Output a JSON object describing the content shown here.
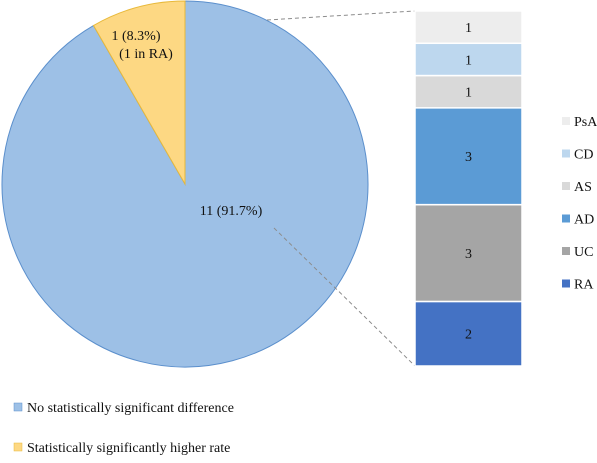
{
  "chart_data": [
    {
      "type": "pie",
      "title": "",
      "slices": [
        {
          "name": "No statistically significant difference",
          "value": 11,
          "label": "11 (91.7%)",
          "color": "#9dc0e6"
        },
        {
          "name": "Statistically significantly higher rate",
          "value": 1,
          "label_lines": [
            "1 (8.3%)",
            "(1 in RA)"
          ],
          "color": "#fdd883"
        }
      ],
      "legend_position": "bottom-left"
    },
    {
      "type": "bar",
      "stacked": true,
      "title": "",
      "segments": [
        {
          "name": "RA",
          "value": 2,
          "color": "#4472c4"
        },
        {
          "name": "UC",
          "value": 3,
          "color": "#a5a5a5"
        },
        {
          "name": "AD",
          "value": 3,
          "color": "#5b9bd5"
        },
        {
          "name": "AS",
          "value": 1,
          "color": "#d9d9d9"
        },
        {
          "name": "CD",
          "value": 1,
          "color": "#bdd7ee"
        },
        {
          "name": "PsA",
          "value": 1,
          "color": "#ededed"
        }
      ],
      "legend_order": [
        "PsA",
        "CD",
        "AS",
        "AD",
        "UC",
        "RA"
      ],
      "legend_position": "right"
    }
  ]
}
